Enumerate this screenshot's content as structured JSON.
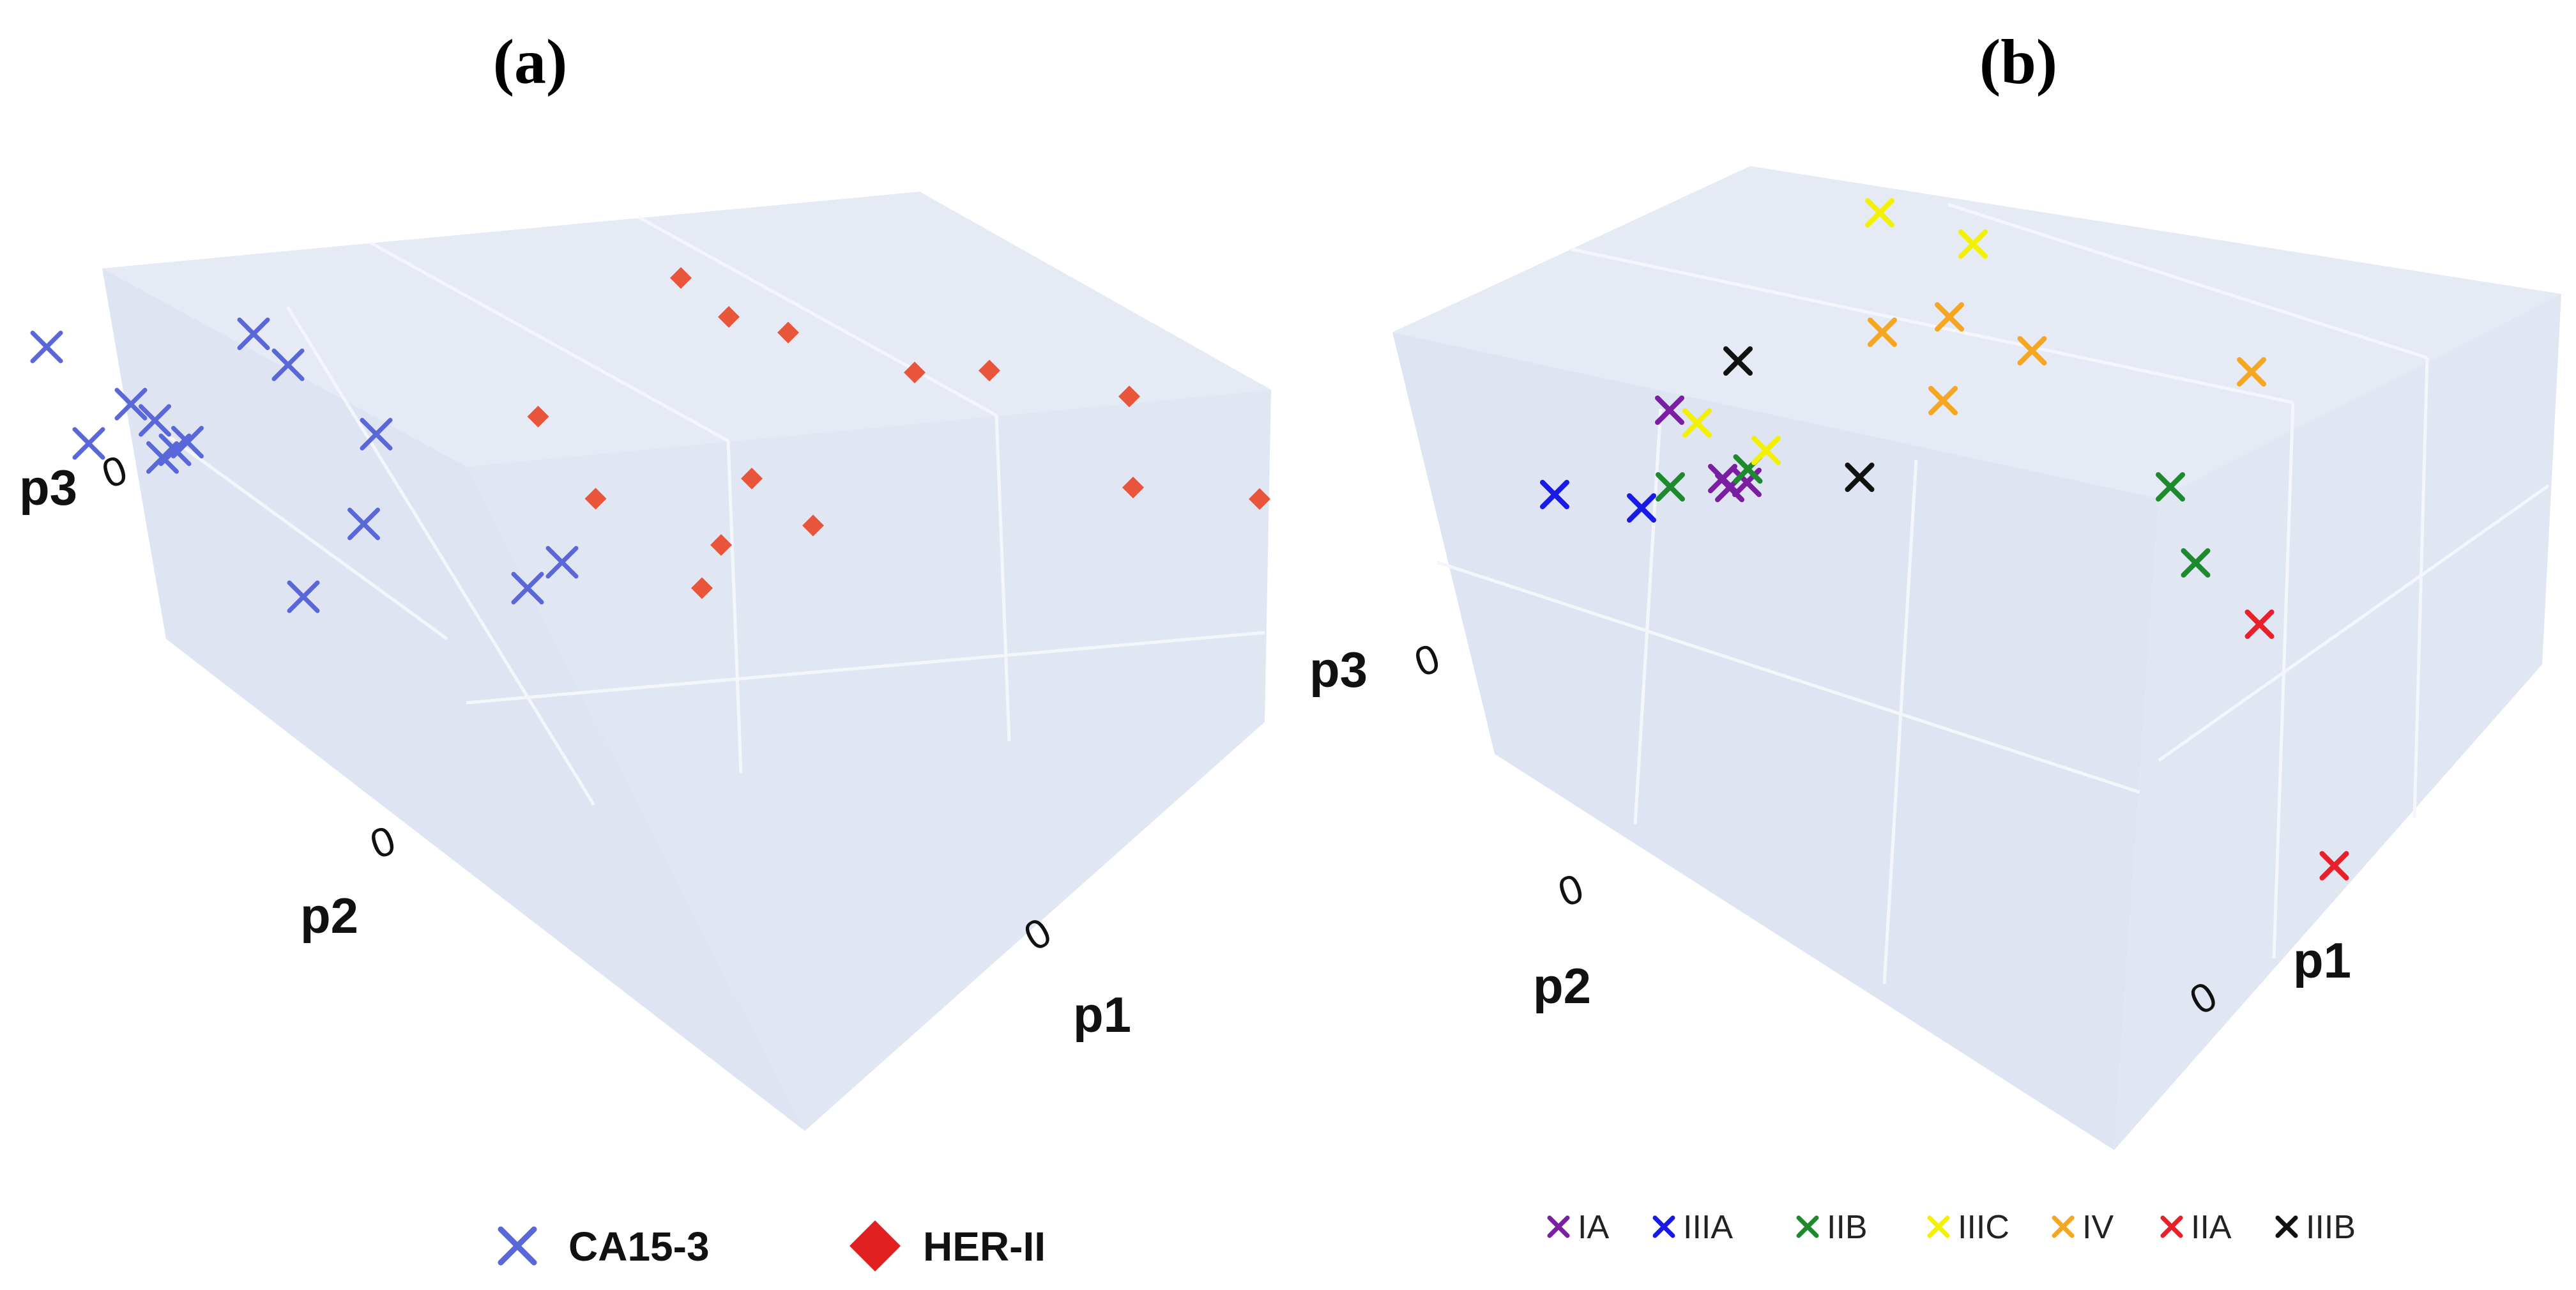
{
  "colors": {
    "pane_top": "#e6eaf5",
    "pane_left": "#dfe4f2",
    "pane_right": "#e1e6f3",
    "grid": "#f4f6fb",
    "ca153": "#5a67d8",
    "her2": "#e8553a"
  },
  "chart_data": [
    {
      "type": "scatter",
      "title": "(a)",
      "axis_labels": {
        "x": "p1",
        "y": "p2",
        "z": "p3"
      },
      "tick_labels": {
        "x": "0",
        "y": "0",
        "z": "0"
      },
      "legend_position": "bottom",
      "series": [
        {
          "name": "CA15-3",
          "marker": "x",
          "color": "#5a67d8",
          "points": [
            {
              "x": -1.5,
              "y": 0.9,
              "z": 0.6
            },
            {
              "x": -1.3,
              "y": 0.85,
              "z": 0.6
            },
            {
              "x": -1.25,
              "y": 0.9,
              "z": 0.6
            },
            {
              "x": -1.2,
              "y": 0.95,
              "z": 0.6
            },
            {
              "x": -1.3,
              "y": 1.2,
              "z": 0.55
            },
            {
              "x": -1.3,
              "y": 0.85,
              "z": 0.8
            },
            {
              "x": -1.6,
              "y": 0.7,
              "z": 1.3
            },
            {
              "x": -0.7,
              "y": 0.6,
              "z": 1.05
            },
            {
              "x": -0.3,
              "y": 0.2,
              "z": 0.8
            },
            {
              "x": -1.0,
              "y": 0.6,
              "z": 1.55
            },
            {
              "x": -0.9,
              "y": 0.7,
              "z": 1.3
            },
            {
              "x": -0.8,
              "y": 0.55,
              "z": 0.6
            },
            {
              "x": -1.1,
              "y": 0.1,
              "z": 0.6
            },
            {
              "x": -0.4,
              "y": 0.3,
              "z": 0.55
            }
          ]
        },
        {
          "name": "HER-II",
          "marker": "diamond",
          "color": "#e8553a",
          "points": [
            {
              "x": 1.3,
              "y": 1.5,
              "z": 0.8
            },
            {
              "x": 1.6,
              "y": 1.2,
              "z": 0.5
            },
            {
              "x": 2.0,
              "y": 1.4,
              "z": 0.3
            },
            {
              "x": 0.6,
              "y": 1.7,
              "z": 0.8
            },
            {
              "x": 0.5,
              "y": 1.8,
              "z": 0.9
            },
            {
              "x": 0.8,
              "y": 1.9,
              "z": 0.55
            },
            {
              "x": -0.1,
              "y": 1.25,
              "z": 0.6
            },
            {
              "x": 0.3,
              "y": 0.9,
              "z": 0.3
            },
            {
              "x": 0.6,
              "y": 1.0,
              "z": 0.35
            },
            {
              "x": 0.5,
              "y": 1.3,
              "z": 0.3
            },
            {
              "x": 0.2,
              "y": 0.8,
              "z": 0.15
            },
            {
              "x": -0.05,
              "y": 0.85,
              "z": 0.55
            },
            {
              "x": 1.2,
              "y": 2.2,
              "z": 0.1
            },
            {
              "x": 1.8,
              "y": 2.1,
              "z": 0.15
            }
          ]
        }
      ]
    },
    {
      "type": "scatter",
      "title": "(b)",
      "axis_labels": {
        "x": "p1",
        "y": "p2",
        "z": "p3"
      },
      "tick_labels": {
        "x": "0",
        "y": "0",
        "z": "0"
      },
      "legend_position": "bottom",
      "series": [
        {
          "name": "IA",
          "marker": "x",
          "color": "#7b1fa2",
          "points": [
            {
              "x": -0.6,
              "y": 0.6,
              "z": 0.6
            },
            {
              "x": -0.4,
              "y": 0.5,
              "z": 0.4
            },
            {
              "x": -0.3,
              "y": 0.3,
              "z": 0.7
            },
            {
              "x": -0.2,
              "y": 0.3,
              "z": 0.75
            }
          ]
        },
        {
          "name": "IIIA",
          "marker": "x",
          "color": "#1a1ae6",
          "points": [
            {
              "x": -1.0,
              "y": 0.2,
              "z": 0.2
            },
            {
              "x": -0.7,
              "y": 0.3,
              "z": 0.25
            }
          ]
        },
        {
          "name": "IIB",
          "marker": "x",
          "color": "#1e8a2e",
          "points": [
            {
              "x": -0.6,
              "y": 0.4,
              "z": 0.35
            },
            {
              "x": -0.35,
              "y": 0.6,
              "z": 0.45
            },
            {
              "x": 1.0,
              "y": 1.4,
              "z": 0.6
            },
            {
              "x": 1.05,
              "y": 1.3,
              "z": 0.3
            }
          ]
        },
        {
          "name": "IIIC",
          "marker": "x",
          "color": "#f2f200",
          "points": [
            {
              "x": -0.5,
              "y": 0.6,
              "z": 0.6
            },
            {
              "x": -0.3,
              "y": 0.7,
              "z": 0.5
            },
            {
              "x": 0.1,
              "y": 1.5,
              "z": 1.4
            },
            {
              "x": 0.4,
              "y": 1.6,
              "z": 1.35
            }
          ]
        },
        {
          "name": "IV",
          "marker": "x",
          "color": "#f5a623",
          "points": [
            {
              "x": 0.1,
              "y": 1.2,
              "z": 1.0
            },
            {
              "x": 0.3,
              "y": 1.4,
              "z": 1.05
            },
            {
              "x": 0.55,
              "y": 1.5,
              "z": 0.95
            },
            {
              "x": 1.3,
              "y": 1.8,
              "z": 1.1
            },
            {
              "x": 0.2,
              "y": 1.3,
              "z": 0.6
            }
          ]
        },
        {
          "name": "IIA",
          "marker": "x",
          "color": "#e8202a",
          "points": [
            {
              "x": 1.35,
              "y": 1.1,
              "z": 0.35
            },
            {
              "x": 1.65,
              "y": 0.5,
              "z": -0.25
            }
          ]
        },
        {
          "name": "IIIB",
          "marker": "x",
          "color": "#111111",
          "points": [
            {
              "x": -0.4,
              "y": 0.9,
              "z": 0.75
            },
            {
              "x": -0.05,
              "y": 0.9,
              "z": 0.35
            }
          ]
        }
      ]
    }
  ]
}
